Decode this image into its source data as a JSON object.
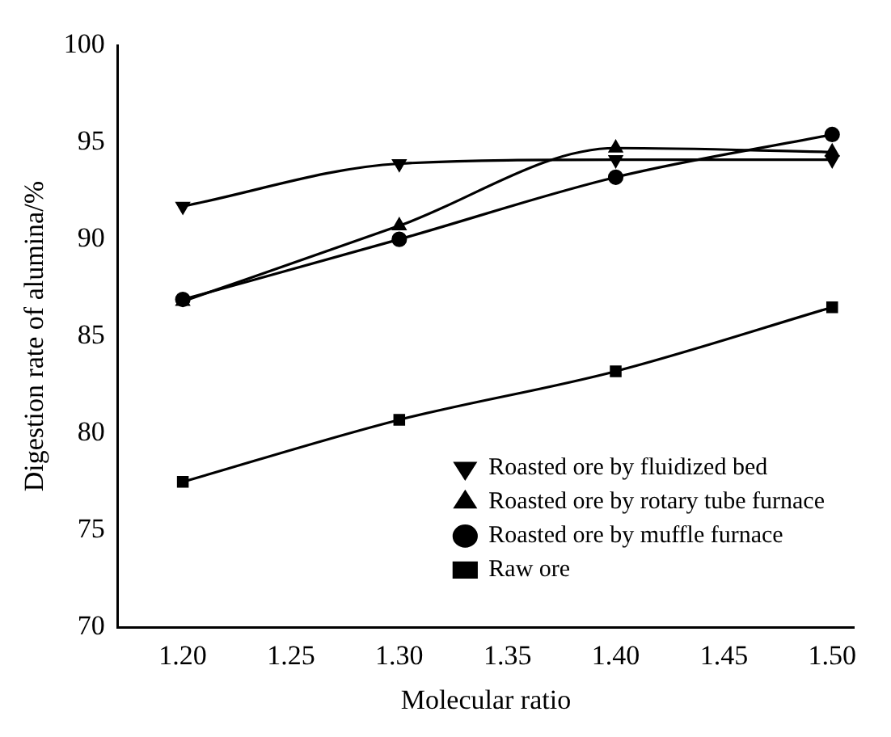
{
  "chart_data": {
    "type": "line",
    "xlabel": "Molecular ratio",
    "ylabel": "Digestion rate of alumina/%",
    "x": [
      1.2,
      1.3,
      1.4,
      1.5
    ],
    "series": [
      {
        "name": "Raw ore",
        "color": "#000000",
        "marker": "square",
        "values": [
          77.5,
          80.7,
          83.2,
          86.5
        ]
      },
      {
        "name": "Roasted ore by muffle furnace",
        "color": "#000000",
        "marker": "circle",
        "values": [
          86.9,
          90.0,
          93.2,
          95.4
        ]
      },
      {
        "name": "Roasted ore by rotary tube furnace",
        "color": "#000000",
        "marker": "triangle",
        "values": [
          86.8,
          90.7,
          94.7,
          94.5
        ]
      },
      {
        "name": "Roasted ore by fluidized bed",
        "color": "#000000",
        "marker": "triangle-down",
        "values": [
          91.7,
          93.9,
          94.1,
          94.1
        ]
      }
    ],
    "xlim": [
      1.17,
      1.51
    ],
    "ylim": [
      70,
      100
    ],
    "xticks": [
      {
        "value": 1.2,
        "label": "1.20"
      },
      {
        "value": 1.25,
        "label": "1.25"
      },
      {
        "value": 1.3,
        "label": "1.30"
      },
      {
        "value": 1.35,
        "label": "1.35"
      },
      {
        "value": 1.4,
        "label": "1.40"
      },
      {
        "value": 1.45,
        "label": "1.45"
      },
      {
        "value": 1.5,
        "label": "1.50"
      }
    ],
    "yticks": [
      70,
      75,
      80,
      85,
      90,
      95,
      100
    ],
    "grid": false,
    "legend": "bottom right",
    "line_style": "solid"
  }
}
